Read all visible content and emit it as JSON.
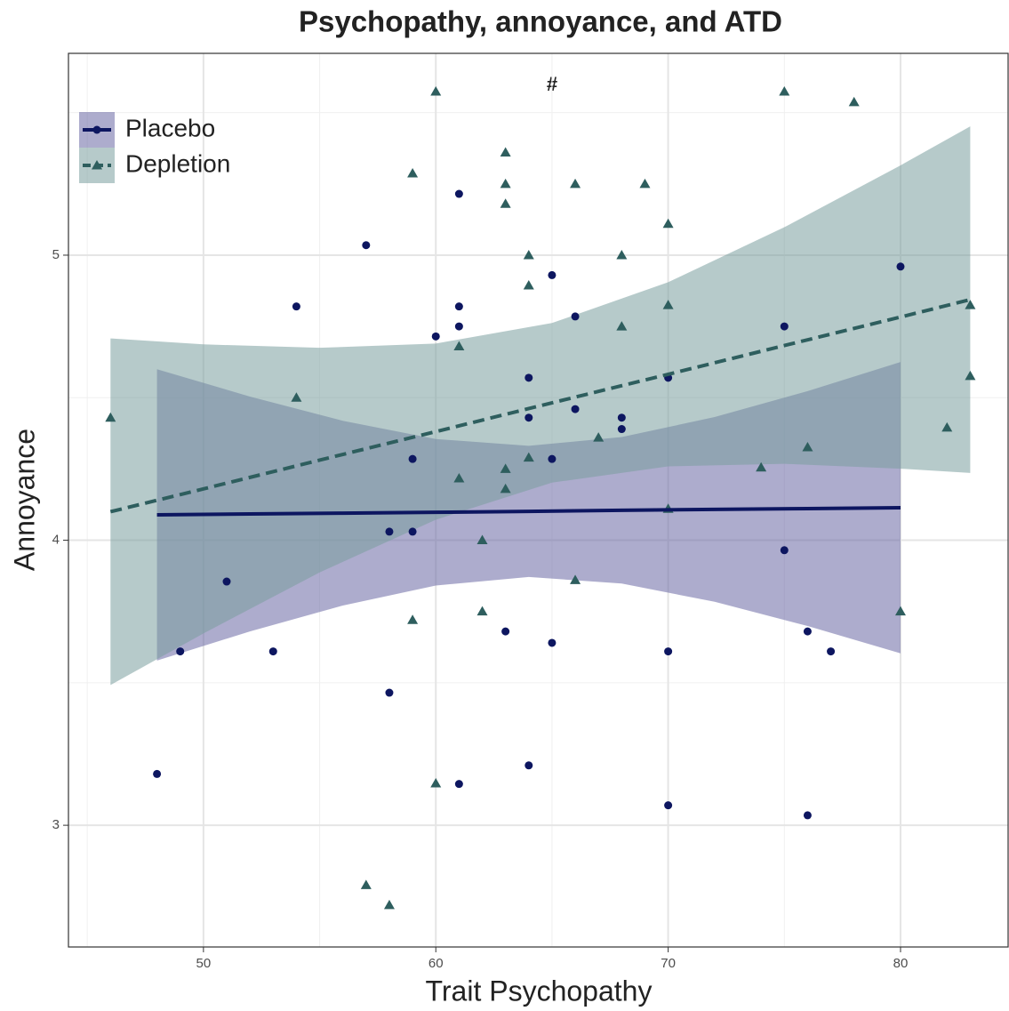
{
  "chart_data": {
    "type": "scatter",
    "title": "Psychopathy, annoyance, and ATD",
    "annotation": "#",
    "x_label": "Trait Psychopathy",
    "y_label": "Annoyance",
    "xlim": [
      44.19,
      84.63
    ],
    "ylim": [
      2.573,
      5.708
    ],
    "xticks": [
      50,
      60,
      70,
      80
    ],
    "yticks": [
      3,
      4,
      5
    ],
    "x_minor_ticks": [
      45,
      55,
      65,
      75
    ],
    "y_minor_ticks": [
      3.5,
      4.5,
      5.5
    ],
    "grid": true,
    "legend": "top-left",
    "series": [
      {
        "name": "Placebo",
        "color": "#0d1660",
        "band_color": "#6a68a4",
        "marker": "circle",
        "dash": false,
        "x": [
          48,
          49,
          51,
          53,
          54,
          57,
          58,
          58,
          59,
          59,
          60,
          61,
          61,
          61,
          61,
          63,
          64,
          64,
          64,
          65,
          65,
          65,
          66,
          66,
          68,
          68,
          70,
          70,
          70,
          75,
          75,
          76,
          76,
          77,
          80
        ],
        "values": [
          3.18,
          3.61,
          3.855,
          3.61,
          4.82,
          5.035,
          4.03,
          3.465,
          4.285,
          4.03,
          4.715,
          5.215,
          4.82,
          4.75,
          3.145,
          3.68,
          4.57,
          4.43,
          3.21,
          4.93,
          4.285,
          3.64,
          4.785,
          4.46,
          4.43,
          4.39,
          4.57,
          3.61,
          3.07,
          4.75,
          3.965,
          3.68,
          3.035,
          3.61,
          4.96
        ],
        "fit": {
          "x": [
            48,
            52,
            56,
            60,
            64,
            68,
            72,
            76,
            80
          ],
          "values": [
            4.089,
            4.092,
            4.095,
            4.098,
            4.101,
            4.105,
            4.108,
            4.111,
            4.114
          ],
          "lower": [
            3.578,
            3.68,
            3.771,
            3.841,
            3.871,
            3.848,
            3.784,
            3.699,
            3.603
          ],
          "upper": [
            4.6,
            4.504,
            4.419,
            4.355,
            4.331,
            4.362,
            4.432,
            4.523,
            4.625
          ]
        }
      },
      {
        "name": "Depletion",
        "color": "#2e5e5e",
        "band_color": "#7a9e9e",
        "marker": "triangle",
        "dash": true,
        "x": [
          46,
          54,
          57,
          58,
          59,
          59,
          60,
          60,
          61,
          61,
          62,
          62,
          63,
          63,
          63,
          63,
          63,
          64,
          64,
          64,
          66,
          66,
          67,
          68,
          68,
          69,
          70,
          70,
          70,
          74,
          75,
          76,
          78,
          80,
          82,
          83,
          83
        ],
        "values": [
          4.43,
          4.5,
          2.79,
          2.72,
          5.287,
          3.72,
          5.574,
          3.147,
          4.68,
          4.217,
          4.0,
          3.75,
          5.36,
          5.25,
          5.18,
          4.25,
          4.18,
          5.0,
          4.894,
          4.29,
          5.25,
          3.86,
          4.36,
          5.0,
          4.75,
          5.25,
          5.11,
          4.825,
          4.11,
          4.255,
          5.574,
          4.326,
          5.537,
          3.75,
          4.395,
          4.825,
          4.576
        ],
        "fit": {
          "x": [
            46,
            50,
            55,
            60,
            65,
            70,
            75,
            80,
            83
          ],
          "values": [
            4.1,
            4.18,
            4.281,
            4.381,
            4.482,
            4.582,
            4.683,
            4.783,
            4.844
          ],
          "lower": [
            3.492,
            3.673,
            3.887,
            4.072,
            4.202,
            4.259,
            4.268,
            4.251,
            4.236
          ],
          "upper": [
            4.708,
            4.687,
            4.675,
            4.69,
            4.762,
            4.905,
            5.098,
            5.315,
            5.452
          ]
        }
      }
    ]
  }
}
